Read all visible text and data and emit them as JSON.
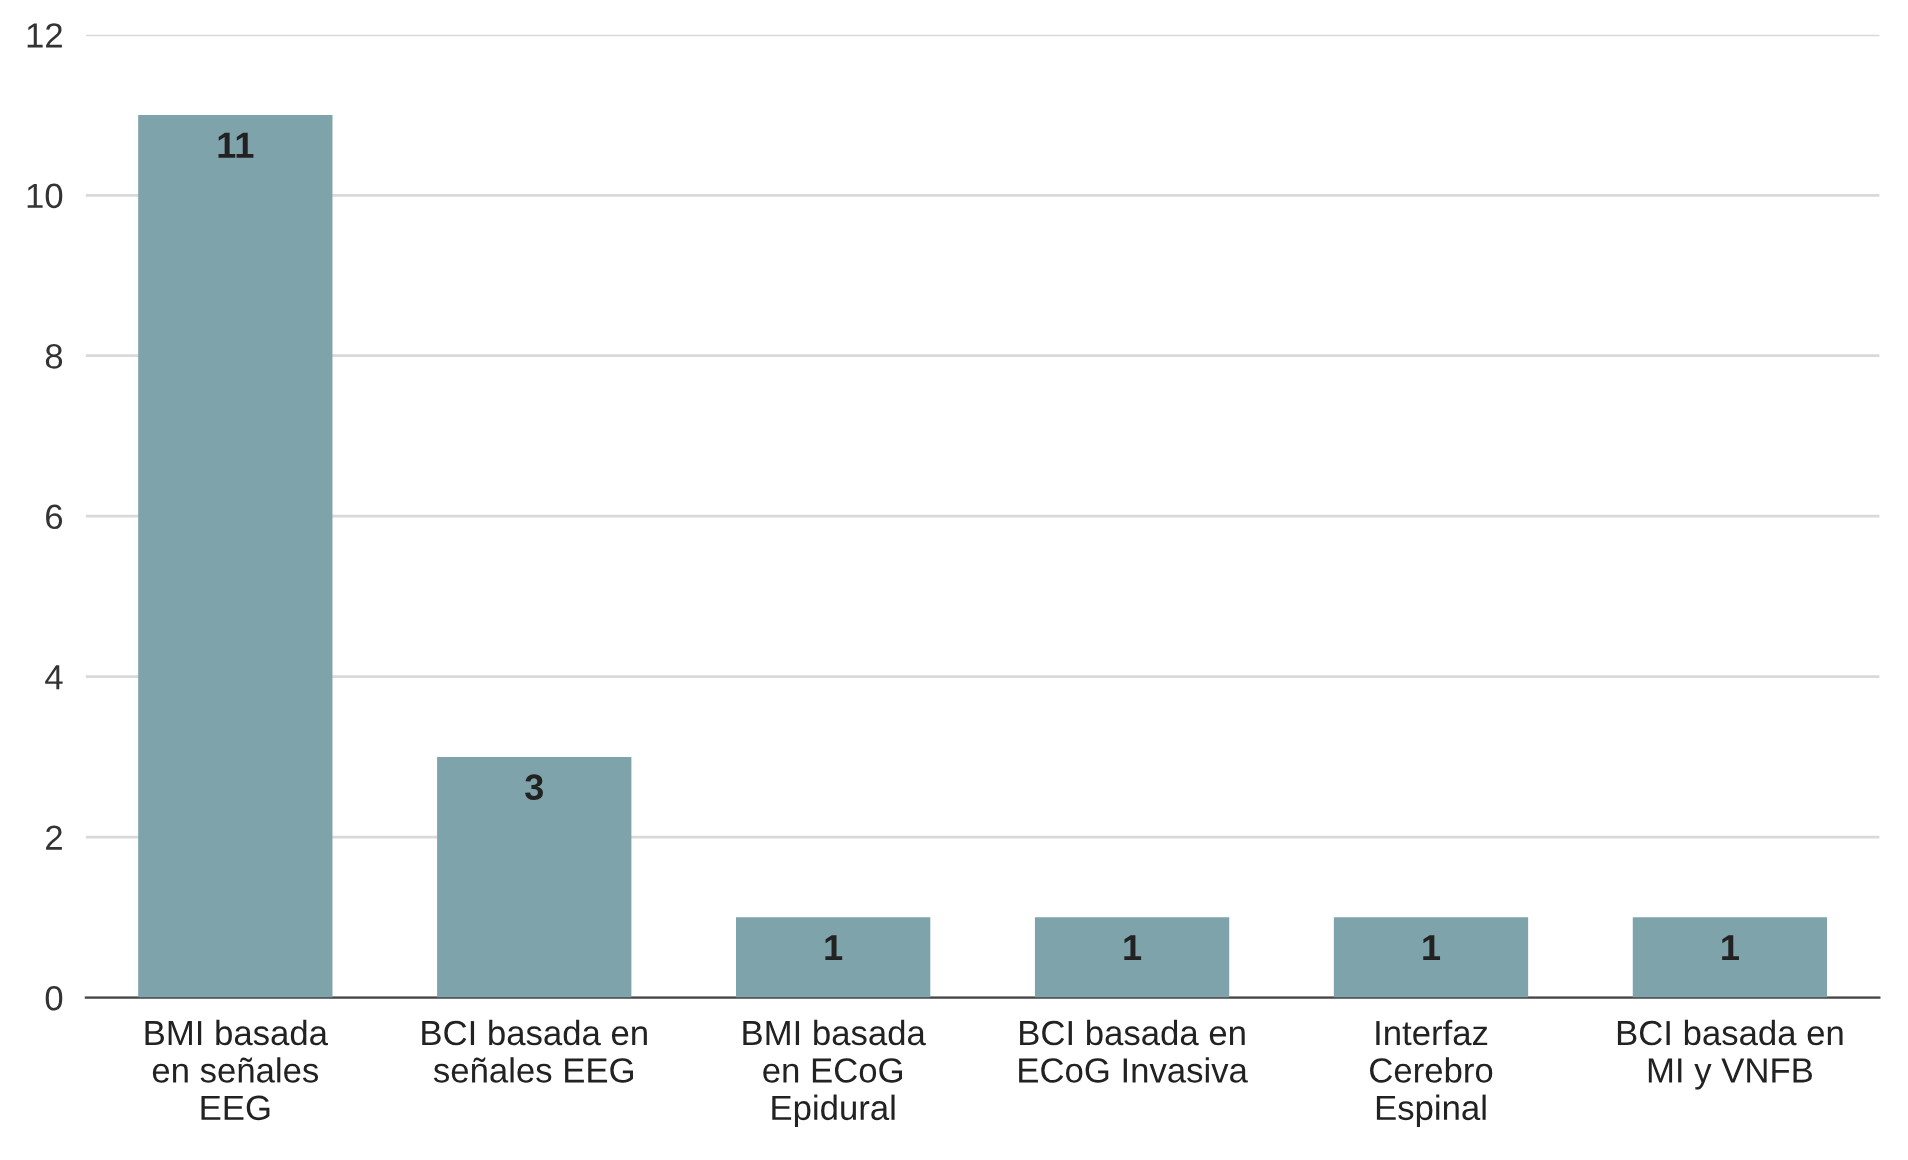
{
  "chart_data": {
    "type": "bar",
    "categories": [
      "BMI basada\nen señales\nEEG",
      "BCI basada en\nseñales EEG",
      "BMI basada\nen ECoG\nEpidural",
      "BCI basada en\nECoG Invasiva",
      "Interfaz\nCerebro\nEspinal",
      "BCI basada en\nMI y VNFB"
    ],
    "values": [
      11,
      3,
      1,
      1,
      1,
      1
    ],
    "color": "#7fa3ab",
    "ylim": [
      0,
      12
    ],
    "yticks": [
      0,
      2,
      4,
      6,
      8,
      10,
      12
    ],
    "grid": "y",
    "data_labels": true
  }
}
